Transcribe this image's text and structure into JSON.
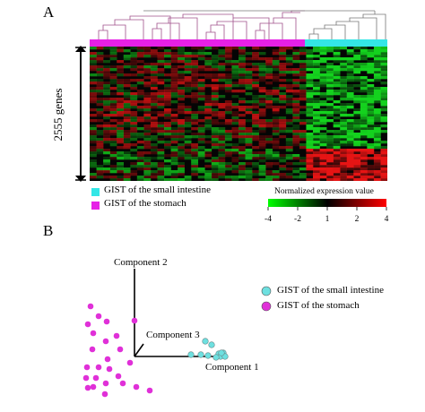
{
  "panel_a": {
    "letter": "A",
    "genes_label": "2555 genes",
    "groups": [
      {
        "name": "GIST of the small intestine",
        "color": "#33e6e6"
      },
      {
        "name": "GIST of the stomach",
        "color": "#e620e6"
      }
    ],
    "colorbar": {
      "title": "Normalized expression value",
      "ticks": [
        "-4",
        "-2",
        "1",
        "2",
        "4"
      ],
      "low_color": "#00ff00",
      "mid_color": "#000000",
      "high_color": "#ff0000"
    },
    "dendrogram_color": "#a0508a"
  },
  "panel_b": {
    "letter": "B",
    "axes": {
      "component_1": "Component 1",
      "component_2": "Component 2",
      "component_3": "Component 3"
    },
    "legend": [
      {
        "name": "GIST of the small intestine",
        "color": "#6ee0e0"
      },
      {
        "name": "GIST of the stomach",
        "color": "#e030d8"
      }
    ]
  }
}
